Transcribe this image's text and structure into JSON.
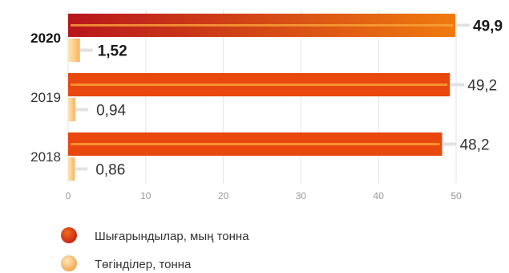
{
  "chart_data": {
    "type": "bar",
    "orientation": "horizontal",
    "categories": [
      "2020",
      "2019",
      "2018"
    ],
    "highlight_category": "2020",
    "series": [
      {
        "name": "Шығарындылар, мың тонна",
        "values": [
          49.9,
          49.2,
          48.2
        ],
        "labels": [
          "49,9",
          "49,2",
          "48,2"
        ],
        "color": "#e8480e",
        "highlight_color": "#c0221a"
      },
      {
        "name": "Төгінділер, тонна",
        "values": [
          1.52,
          0.94,
          0.86
        ],
        "labels": [
          "1,52",
          "0,94",
          "0,86"
        ],
        "color": "#fbcf85"
      }
    ],
    "xlim": [
      0,
      50
    ],
    "xticks": [
      "0",
      "10",
      "20",
      "30",
      "40",
      "50"
    ],
    "xlabel": "",
    "ylabel": "",
    "title": "",
    "legend_position": "bottom-left"
  }
}
